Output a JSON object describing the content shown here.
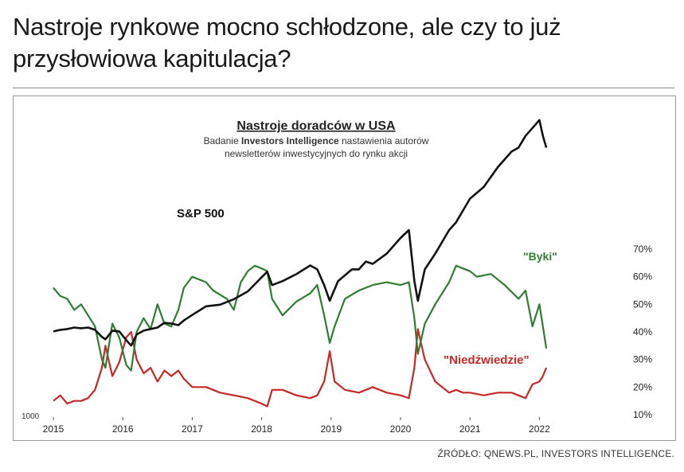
{
  "headline": "Nastroje rynkowe mocno schłodzone, ale czy to już przysłowiowa kapitulacja?",
  "source": "ŹRÓDŁO: QNEWS.PL, INVESTORS INTELLIGENCE.",
  "chart_data": {
    "type": "line",
    "title": "Nastroje doradców w USA",
    "subtitle_prefix": "Badanie ",
    "subtitle_bold": "Investors Intelligence",
    "subtitle_rest_line1": " nastawienia autorów",
    "subtitle_line2": "newsletterów inwestycyjnych do rynku akcji",
    "x_ticks": [
      "2015",
      "2016",
      "2017",
      "2018",
      "2019",
      "2020",
      "2021",
      "2022"
    ],
    "y_right_ticks": [
      "10%",
      "20%",
      "30%",
      "40%",
      "50%",
      "60%",
      "70%"
    ],
    "y_left_min_label": "1000",
    "ylim_right": [
      10,
      70
    ],
    "grid": false,
    "colors": {
      "sp500": "#111111",
      "bulls": "#2e7d32",
      "bears": "#c62828",
      "title": "#222222"
    },
    "series": [
      {
        "name": "S&P 500",
        "axis": "left",
        "x": [
          2015.0,
          2015.1,
          2015.2,
          2015.3,
          2015.4,
          2015.5,
          2015.6,
          2015.7,
          2015.75,
          2015.85,
          2015.95,
          2016.05,
          2016.12,
          2016.2,
          2016.3,
          2016.4,
          2016.5,
          2016.6,
          2016.7,
          2016.8,
          2016.88,
          2017.0,
          2017.2,
          2017.4,
          2017.6,
          2017.8,
          2018.0,
          2018.08,
          2018.15,
          2018.3,
          2018.5,
          2018.7,
          2018.8,
          2018.9,
          2018.98,
          2019.1,
          2019.3,
          2019.4,
          2019.5,
          2019.6,
          2019.8,
          2020.0,
          2020.12,
          2020.2,
          2020.25,
          2020.35,
          2020.5,
          2020.7,
          2020.8,
          2020.9,
          2021.0,
          2021.2,
          2021.4,
          2021.6,
          2021.7,
          2021.8,
          2021.9,
          2022.0,
          2022.05,
          2022.1
        ],
        "values": [
          2060,
          2080,
          2090,
          2110,
          2100,
          2110,
          2080,
          1990,
          1960,
          2070,
          2060,
          1950,
          1880,
          2020,
          2070,
          2090,
          2110,
          2170,
          2160,
          2140,
          2200,
          2270,
          2380,
          2400,
          2470,
          2570,
          2750,
          2820,
          2650,
          2700,
          2790,
          2900,
          2850,
          2650,
          2450,
          2700,
          2850,
          2850,
          2950,
          2920,
          3050,
          3250,
          3350,
          2700,
          2450,
          2850,
          3050,
          3350,
          3450,
          3600,
          3750,
          3900,
          4150,
          4350,
          4400,
          4550,
          4650,
          4750,
          4550,
          4400
        ]
      },
      {
        "name": "Byki",
        "axis": "right",
        "x": [
          2015.0,
          2015.1,
          2015.2,
          2015.3,
          2015.4,
          2015.5,
          2015.6,
          2015.7,
          2015.75,
          2015.85,
          2015.95,
          2016.05,
          2016.12,
          2016.2,
          2016.3,
          2016.4,
          2016.5,
          2016.6,
          2016.7,
          2016.8,
          2016.88,
          2017.0,
          2017.2,
          2017.3,
          2017.5,
          2017.6,
          2017.7,
          2017.8,
          2017.9,
          2018.0,
          2018.08,
          2018.15,
          2018.3,
          2018.5,
          2018.7,
          2018.8,
          2018.9,
          2018.98,
          2019.05,
          2019.2,
          2019.4,
          2019.6,
          2019.8,
          2020.0,
          2020.12,
          2020.2,
          2020.25,
          2020.35,
          2020.5,
          2020.7,
          2020.8,
          2020.9,
          2021.0,
          2021.1,
          2021.3,
          2021.5,
          2021.7,
          2021.8,
          2021.9,
          2022.0,
          2022.05,
          2022.1
        ],
        "values": [
          56,
          53,
          52,
          48,
          50,
          46,
          42,
          30,
          27,
          43,
          38,
          28,
          26,
          40,
          45,
          41,
          50,
          43,
          42,
          48,
          56,
          60,
          58,
          55,
          52,
          48,
          58,
          62,
          64,
          63,
          62,
          52,
          46,
          51,
          54,
          57,
          46,
          36,
          42,
          52,
          55,
          57,
          58,
          57,
          58,
          45,
          32,
          43,
          50,
          58,
          64,
          63,
          62,
          60,
          61,
          57,
          52,
          55,
          42,
          50,
          42,
          34
        ]
      },
      {
        "name": "Niedźwiedzie",
        "axis": "right",
        "x": [
          2015.0,
          2015.1,
          2015.2,
          2015.3,
          2015.4,
          2015.5,
          2015.6,
          2015.7,
          2015.75,
          2015.85,
          2015.95,
          2016.05,
          2016.12,
          2016.2,
          2016.3,
          2016.4,
          2016.5,
          2016.6,
          2016.7,
          2016.8,
          2016.88,
          2017.0,
          2017.2,
          2017.4,
          2017.6,
          2017.8,
          2018.0,
          2018.08,
          2018.15,
          2018.3,
          2018.5,
          2018.7,
          2018.8,
          2018.9,
          2018.98,
          2019.05,
          2019.2,
          2019.4,
          2019.6,
          2019.8,
          2020.0,
          2020.12,
          2020.2,
          2020.25,
          2020.35,
          2020.5,
          2020.7,
          2020.8,
          2020.9,
          2021.0,
          2021.2,
          2021.4,
          2021.6,
          2021.8,
          2021.9,
          2022.0,
          2022.05,
          2022.1
        ],
        "values": [
          15,
          17,
          14,
          15,
          15,
          16,
          19,
          27,
          35,
          24,
          29,
          38,
          40,
          30,
          25,
          27,
          22,
          26,
          24,
          26,
          23,
          20,
          20,
          18,
          17,
          16,
          14,
          13,
          19,
          19,
          17,
          16,
          17,
          22,
          33,
          22,
          19,
          18,
          20,
          18,
          17,
          16,
          27,
          41,
          30,
          22,
          18,
          19,
          18,
          18,
          17,
          18,
          18,
          16,
          21,
          22,
          24,
          27
        ]
      }
    ],
    "series_labels": [
      {
        "text": "S&P 500",
        "color": "#111111"
      },
      {
        "text": "\"Byki\"",
        "color": "#2e7d32"
      },
      {
        "text": "\"Niedźwiedzie\"",
        "color": "#c62828"
      }
    ]
  }
}
